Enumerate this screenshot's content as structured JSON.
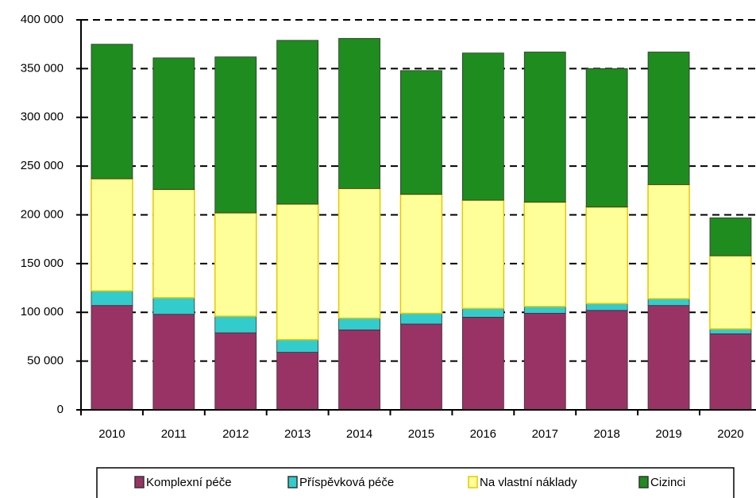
{
  "chart_data": {
    "type": "stacked_bar",
    "categories": [
      "2010",
      "2011",
      "2012",
      "2013",
      "2014",
      "2015",
      "2016",
      "2017",
      "2018",
      "2019",
      "2020"
    ],
    "series": [
      {
        "name": "Komplexní péče",
        "color": "#993366",
        "values": [
          107000,
          98000,
          79000,
          59000,
          82000,
          88000,
          95000,
          99000,
          102000,
          107000,
          78000
        ]
      },
      {
        "name": "Příspěvková péče",
        "color": "#33cccc",
        "values": [
          15000,
          17000,
          17000,
          13000,
          12000,
          11000,
          9000,
          7000,
          7000,
          7000,
          5000
        ]
      },
      {
        "name": "Na vlastní náklady",
        "color": "#ffff99",
        "values": [
          115000,
          111000,
          106000,
          139000,
          133000,
          122000,
          111000,
          107000,
          99000,
          117000,
          75000
        ]
      },
      {
        "name": "Cizinci",
        "color": "#1e8c1e",
        "values": [
          138000,
          135000,
          160000,
          168000,
          154000,
          127000,
          151000,
          154000,
          142000,
          136000,
          39000
        ]
      }
    ],
    "ylim": [
      0,
      400000
    ],
    "yticks": [
      0,
      {
        "value": 50000,
        "label": "50 000"
      },
      {
        "value": 100000,
        "label": "100 000"
      },
      {
        "value": 150000,
        "label": "150 000"
      },
      {
        "value": 200000,
        "label": "200 000"
      },
      {
        "value": 250000,
        "label": "250 000"
      },
      {
        "value": 300000,
        "label": "300 000"
      },
      {
        "value": 350000,
        "label": "350 000"
      },
      {
        "value": 400000,
        "label": "400 000"
      }
    ],
    "grid": true,
    "legend": "bottom"
  }
}
